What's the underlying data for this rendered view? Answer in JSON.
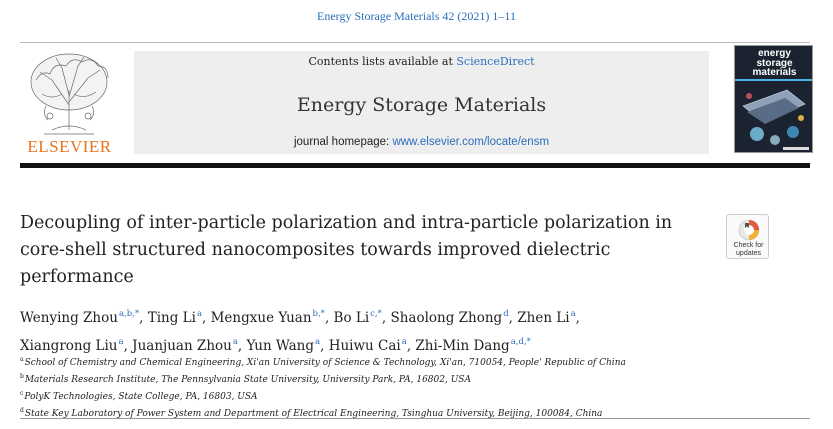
{
  "header": {
    "citation": "Energy Storage Materials 42 (2021) 1–11",
    "publisher_logo_text": "ELSEVIER",
    "contents_prefix": "Contents lists available at ",
    "contents_link": "ScienceDirect",
    "journal_title": "Energy Storage Materials",
    "homepage_prefix": "journal homepage: ",
    "homepage_link": "www.elsevier.com/locate/ensm",
    "cover_title_lines": [
      "energy",
      "storage",
      "materials"
    ]
  },
  "badge": {
    "line1": "Check for",
    "line2": "updates"
  },
  "article": {
    "title_lines": [
      "Decoupling of inter-particle polarization and intra-particle polarization in",
      "core-shell structured nanocomposites towards improved dielectric",
      "performance"
    ]
  },
  "authors": [
    {
      "name": "Wenying Zhou",
      "sup": "a,b,*"
    },
    {
      "name": "Ting Li",
      "sup": "a"
    },
    {
      "name": "Mengxue Yuan",
      "sup": "b,*"
    },
    {
      "name": "Bo Li",
      "sup": "c,*"
    },
    {
      "name": "Shaolong Zhong",
      "sup": "d"
    },
    {
      "name": "Zhen Li",
      "sup": "a"
    },
    {
      "name": "Xiangrong Liu",
      "sup": "a"
    },
    {
      "name": "Juanjuan Zhou",
      "sup": "a"
    },
    {
      "name": "Yun Wang",
      "sup": "a"
    },
    {
      "name": "Huiwu Cai",
      "sup": "a"
    },
    {
      "name": "Zhi-Min Dang",
      "sup": "a,d,*"
    }
  ],
  "affiliations": [
    {
      "key": "a",
      "text": "School of Chemistry and Chemical Engineering, Xi'an University of Science & Technology, Xi'an, 710054, People' Republic of China"
    },
    {
      "key": "b",
      "text": "Materials Research Institute, The Pennsylvania State University, University Park, PA, 16802, USA"
    },
    {
      "key": "c",
      "text": "PolyK Technologies, State College, PA, 16803, USA"
    },
    {
      "key": "d",
      "text": "State Key Laboratory of Power System and Department of Electrical Engineering, Tsinghua University, Beijing, 100084, China"
    }
  ],
  "colors": {
    "link": "#2a6ebb",
    "elsevier_orange": "#e7731d",
    "banner_gray": "#eeeeee"
  }
}
